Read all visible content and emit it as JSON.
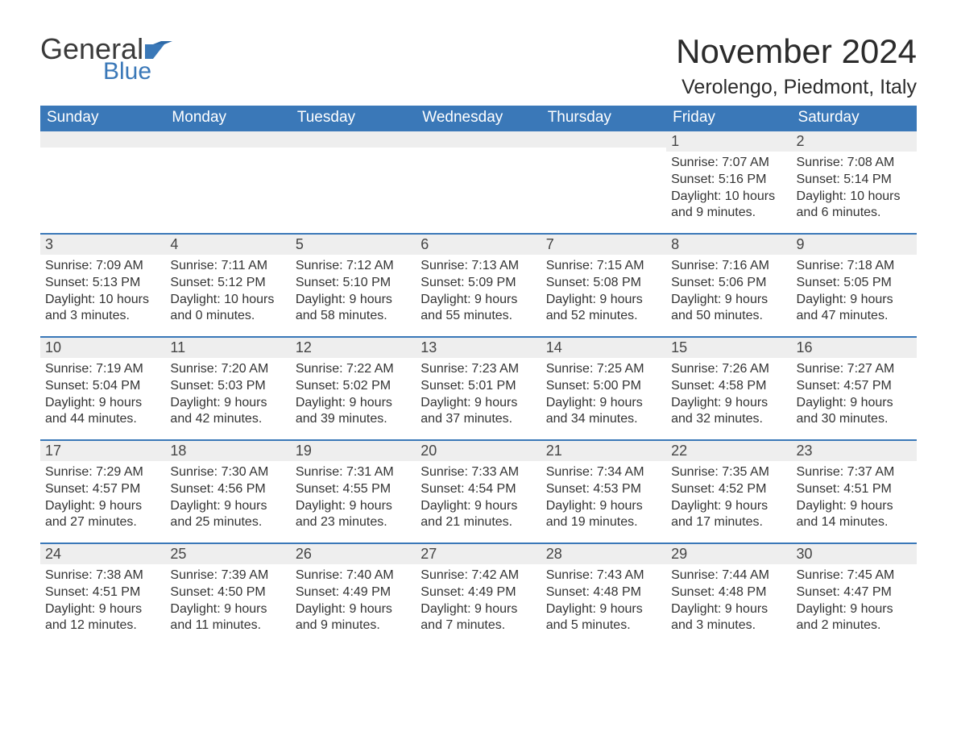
{
  "brand": {
    "word1": "General",
    "word2": "Blue",
    "text_color": "#3a3a3a",
    "accent_color": "#3a78b8"
  },
  "title": "November 2024",
  "location": "Verolengo, Piedmont, Italy",
  "colors": {
    "header_bg": "#3a78b8",
    "header_text": "#ffffff",
    "daynum_bg": "#eeeeee",
    "border": "#3a78b8",
    "body_text": "#333333",
    "page_bg": "#ffffff"
  },
  "weekdays": [
    "Sunday",
    "Monday",
    "Tuesday",
    "Wednesday",
    "Thursday",
    "Friday",
    "Saturday"
  ],
  "weeks": [
    [
      null,
      null,
      null,
      null,
      null,
      {
        "n": "1",
        "sunrise": "7:07 AM",
        "sunset": "5:16 PM",
        "dl1": "Daylight: 10 hours",
        "dl2": "and 9 minutes."
      },
      {
        "n": "2",
        "sunrise": "7:08 AM",
        "sunset": "5:14 PM",
        "dl1": "Daylight: 10 hours",
        "dl2": "and 6 minutes."
      }
    ],
    [
      {
        "n": "3",
        "sunrise": "7:09 AM",
        "sunset": "5:13 PM",
        "dl1": "Daylight: 10 hours",
        "dl2": "and 3 minutes."
      },
      {
        "n": "4",
        "sunrise": "7:11 AM",
        "sunset": "5:12 PM",
        "dl1": "Daylight: 10 hours",
        "dl2": "and 0 minutes."
      },
      {
        "n": "5",
        "sunrise": "7:12 AM",
        "sunset": "5:10 PM",
        "dl1": "Daylight: 9 hours",
        "dl2": "and 58 minutes."
      },
      {
        "n": "6",
        "sunrise": "7:13 AM",
        "sunset": "5:09 PM",
        "dl1": "Daylight: 9 hours",
        "dl2": "and 55 minutes."
      },
      {
        "n": "7",
        "sunrise": "7:15 AM",
        "sunset": "5:08 PM",
        "dl1": "Daylight: 9 hours",
        "dl2": "and 52 minutes."
      },
      {
        "n": "8",
        "sunrise": "7:16 AM",
        "sunset": "5:06 PM",
        "dl1": "Daylight: 9 hours",
        "dl2": "and 50 minutes."
      },
      {
        "n": "9",
        "sunrise": "7:18 AM",
        "sunset": "5:05 PM",
        "dl1": "Daylight: 9 hours",
        "dl2": "and 47 minutes."
      }
    ],
    [
      {
        "n": "10",
        "sunrise": "7:19 AM",
        "sunset": "5:04 PM",
        "dl1": "Daylight: 9 hours",
        "dl2": "and 44 minutes."
      },
      {
        "n": "11",
        "sunrise": "7:20 AM",
        "sunset": "5:03 PM",
        "dl1": "Daylight: 9 hours",
        "dl2": "and 42 minutes."
      },
      {
        "n": "12",
        "sunrise": "7:22 AM",
        "sunset": "5:02 PM",
        "dl1": "Daylight: 9 hours",
        "dl2": "and 39 minutes."
      },
      {
        "n": "13",
        "sunrise": "7:23 AM",
        "sunset": "5:01 PM",
        "dl1": "Daylight: 9 hours",
        "dl2": "and 37 minutes."
      },
      {
        "n": "14",
        "sunrise": "7:25 AM",
        "sunset": "5:00 PM",
        "dl1": "Daylight: 9 hours",
        "dl2": "and 34 minutes."
      },
      {
        "n": "15",
        "sunrise": "7:26 AM",
        "sunset": "4:58 PM",
        "dl1": "Daylight: 9 hours",
        "dl2": "and 32 minutes."
      },
      {
        "n": "16",
        "sunrise": "7:27 AM",
        "sunset": "4:57 PM",
        "dl1": "Daylight: 9 hours",
        "dl2": "and 30 minutes."
      }
    ],
    [
      {
        "n": "17",
        "sunrise": "7:29 AM",
        "sunset": "4:57 PM",
        "dl1": "Daylight: 9 hours",
        "dl2": "and 27 minutes."
      },
      {
        "n": "18",
        "sunrise": "7:30 AM",
        "sunset": "4:56 PM",
        "dl1": "Daylight: 9 hours",
        "dl2": "and 25 minutes."
      },
      {
        "n": "19",
        "sunrise": "7:31 AM",
        "sunset": "4:55 PM",
        "dl1": "Daylight: 9 hours",
        "dl2": "and 23 minutes."
      },
      {
        "n": "20",
        "sunrise": "7:33 AM",
        "sunset": "4:54 PM",
        "dl1": "Daylight: 9 hours",
        "dl2": "and 21 minutes."
      },
      {
        "n": "21",
        "sunrise": "7:34 AM",
        "sunset": "4:53 PM",
        "dl1": "Daylight: 9 hours",
        "dl2": "and 19 minutes."
      },
      {
        "n": "22",
        "sunrise": "7:35 AM",
        "sunset": "4:52 PM",
        "dl1": "Daylight: 9 hours",
        "dl2": "and 17 minutes."
      },
      {
        "n": "23",
        "sunrise": "7:37 AM",
        "sunset": "4:51 PM",
        "dl1": "Daylight: 9 hours",
        "dl2": "and 14 minutes."
      }
    ],
    [
      {
        "n": "24",
        "sunrise": "7:38 AM",
        "sunset": "4:51 PM",
        "dl1": "Daylight: 9 hours",
        "dl2": "and 12 minutes."
      },
      {
        "n": "25",
        "sunrise": "7:39 AM",
        "sunset": "4:50 PM",
        "dl1": "Daylight: 9 hours",
        "dl2": "and 11 minutes."
      },
      {
        "n": "26",
        "sunrise": "7:40 AM",
        "sunset": "4:49 PM",
        "dl1": "Daylight: 9 hours",
        "dl2": "and 9 minutes."
      },
      {
        "n": "27",
        "sunrise": "7:42 AM",
        "sunset": "4:49 PM",
        "dl1": "Daylight: 9 hours",
        "dl2": "and 7 minutes."
      },
      {
        "n": "28",
        "sunrise": "7:43 AM",
        "sunset": "4:48 PM",
        "dl1": "Daylight: 9 hours",
        "dl2": "and 5 minutes."
      },
      {
        "n": "29",
        "sunrise": "7:44 AM",
        "sunset": "4:48 PM",
        "dl1": "Daylight: 9 hours",
        "dl2": "and 3 minutes."
      },
      {
        "n": "30",
        "sunrise": "7:45 AM",
        "sunset": "4:47 PM",
        "dl1": "Daylight: 9 hours",
        "dl2": "and 2 minutes."
      }
    ]
  ],
  "labels": {
    "sunrise_prefix": "Sunrise: ",
    "sunset_prefix": "Sunset: "
  }
}
